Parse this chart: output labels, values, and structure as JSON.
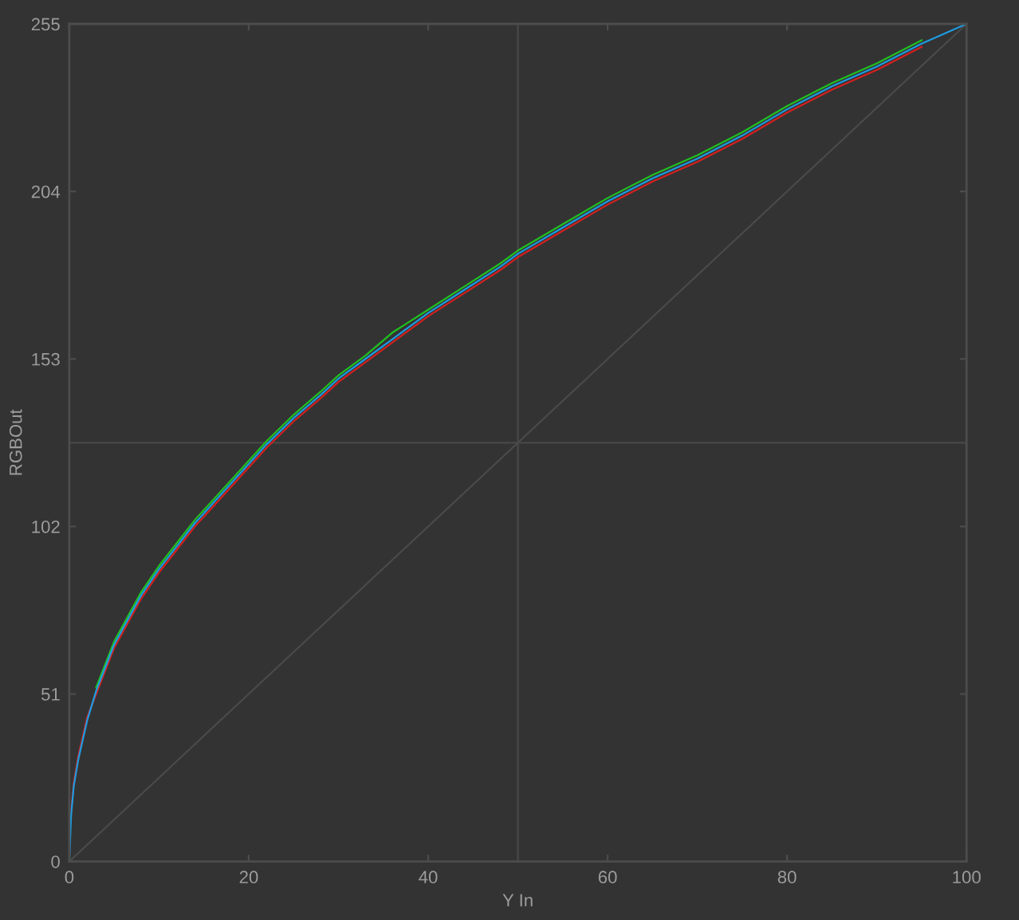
{
  "chart_data": {
    "type": "line",
    "xlabel": "Y In",
    "ylabel": "RGBOut",
    "x": [
      0,
      0.2,
      0.5,
      1,
      1.5,
      2,
      3,
      4,
      5,
      6,
      8,
      10,
      12,
      14,
      16,
      18,
      20,
      22,
      25,
      28,
      30,
      33,
      36,
      40,
      44,
      48,
      50,
      55,
      60,
      65,
      70,
      75,
      80,
      85,
      90,
      95,
      100
    ],
    "series": [
      {
        "color": "#4a4a4a",
        "x": [
          0,
          100
        ],
        "values": [
          0,
          255
        ]
      },
      {
        "color": "#d42020",
        "values": [
          null,
          15,
          24,
          32,
          38,
          44,
          51,
          58,
          65,
          70,
          80,
          88,
          95,
          102,
          108,
          114,
          120,
          126,
          134,
          141,
          146,
          152,
          158,
          166,
          173,
          180,
          184,
          192,
          200,
          207,
          213,
          220,
          228,
          235,
          241,
          248,
          null
        ]
      },
      {
        "color": "#20c020",
        "values": [
          null,
          null,
          null,
          null,
          null,
          null,
          53,
          60,
          67,
          72,
          82,
          90,
          97,
          104,
          110,
          116,
          122,
          128,
          136,
          143,
          148,
          154,
          161,
          168,
          175,
          182,
          186,
          194,
          202,
          209,
          215,
          222,
          230,
          237,
          243,
          250,
          null
        ]
      },
      {
        "color": "#1e9be0",
        "values": [
          0,
          14,
          23,
          31,
          37,
          43,
          52,
          59,
          66,
          71,
          81,
          89,
          96,
          103,
          109,
          115,
          121,
          127,
          135,
          142,
          147,
          153,
          159,
          167,
          174,
          181,
          185,
          193,
          201,
          208,
          214,
          221,
          229,
          236,
          242,
          249,
          255
        ]
      }
    ],
    "xlim": [
      0,
      100
    ],
    "ylim": [
      0,
      255
    ],
    "xticks": [
      0,
      20,
      40,
      60,
      80,
      100
    ],
    "yticks": [
      0,
      51,
      102,
      153,
      204,
      255
    ],
    "ref_lines": [
      {
        "axis": "x",
        "value": 50,
        "color": "#484848"
      },
      {
        "axis": "y",
        "value": 127.5,
        "color": "#484848"
      }
    ]
  }
}
